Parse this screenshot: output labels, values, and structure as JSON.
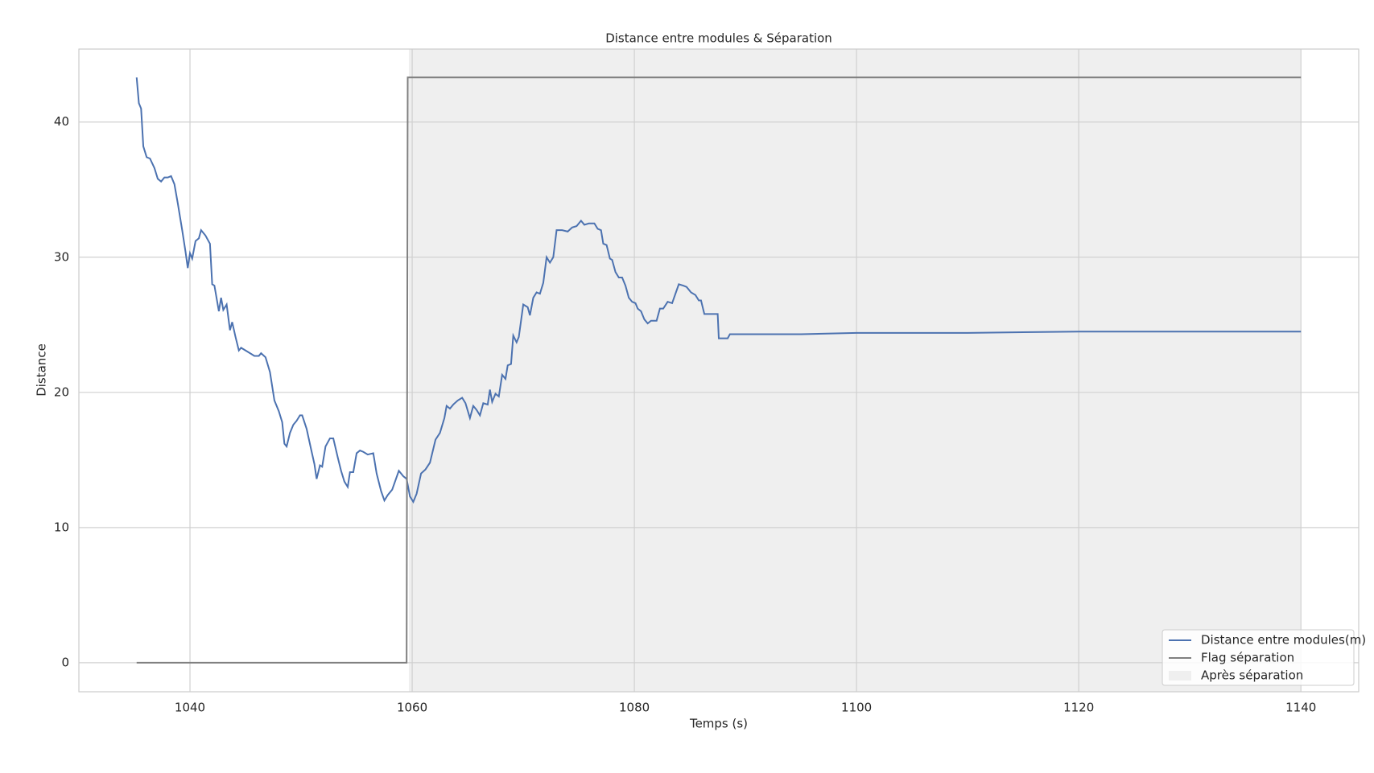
{
  "chart_data": {
    "type": "line",
    "title": "Distance entre modules & Séparation",
    "x_label": "Temps (s)",
    "y_label": "Distance",
    "xlim": [
      1030,
      1145.2
    ],
    "ylim": [
      -2.15,
      45.4
    ],
    "xticks": [
      1040,
      1060,
      1080,
      1100,
      1120,
      1140
    ],
    "yticks": [
      0,
      10,
      20,
      30,
      40
    ],
    "grid": true,
    "legend": "lower right",
    "shaded_region": {
      "name": "Après séparation",
      "x": [
        1059.7,
        1140
      ],
      "color": "#efefef"
    },
    "series": [
      {
        "name": "Distance entre modules(m)",
        "color": "#4c72b0",
        "x": [
          1035.2,
          1035.4,
          1035.6,
          1035.8,
          1036.1,
          1036.4,
          1036.8,
          1037.1,
          1037.4,
          1037.7,
          1038.0,
          1038.3,
          1038.6,
          1038.9,
          1039.3,
          1039.6,
          1039.8,
          1040.0,
          1040.2,
          1040.5,
          1040.8,
          1041.0,
          1041.4,
          1041.8,
          1042.0,
          1042.2,
          1042.6,
          1042.8,
          1043.0,
          1043.3,
          1043.6,
          1043.8,
          1044.1,
          1044.4,
          1044.6,
          1045.2,
          1045.8,
          1046.2,
          1046.4,
          1046.8,
          1047.2,
          1047.6,
          1048.0,
          1048.3,
          1048.5,
          1048.7,
          1049.0,
          1049.3,
          1049.6,
          1049.9,
          1050.1,
          1050.5,
          1050.9,
          1051.2,
          1051.4,
          1051.7,
          1051.9,
          1052.2,
          1052.6,
          1052.9,
          1053.3,
          1053.6,
          1053.9,
          1054.2,
          1054.4,
          1054.7,
          1055.0,
          1055.3,
          1055.6,
          1056.0,
          1056.5,
          1056.8,
          1057.2,
          1057.5,
          1057.8,
          1058.2,
          1058.8,
          1059.2,
          1059.5,
          1059.8,
          1060.1,
          1060.4,
          1060.8,
          1061.2,
          1061.6,
          1062.1,
          1062.5,
          1062.9,
          1063.1,
          1063.4,
          1063.7,
          1064.1,
          1064.5,
          1064.8,
          1065.2,
          1065.5,
          1065.8,
          1066.1,
          1066.4,
          1066.8,
          1067.0,
          1067.2,
          1067.5,
          1067.8,
          1068.1,
          1068.4,
          1068.6,
          1068.9,
          1069.1,
          1069.4,
          1069.6,
          1070.0,
          1070.4,
          1070.6,
          1070.9,
          1071.2,
          1071.5,
          1071.8,
          1072.1,
          1072.4,
          1072.7,
          1073.0,
          1073.5,
          1074.0,
          1074.4,
          1074.8,
          1075.2,
          1075.5,
          1075.9,
          1076.4,
          1076.7,
          1077.0,
          1077.2,
          1077.5,
          1077.8,
          1078.0,
          1078.3,
          1078.6,
          1078.9,
          1079.2,
          1079.5,
          1079.8,
          1080.1,
          1080.3,
          1080.6,
          1080.9,
          1081.2,
          1081.5,
          1082.0,
          1082.3,
          1082.6,
          1083.0,
          1083.4,
          1083.7,
          1084.0,
          1084.4,
          1084.7,
          1085.1,
          1085.5,
          1085.8,
          1086.0,
          1086.3,
          1086.8,
          1087.5,
          1087.6,
          1088.0,
          1088.4,
          1088.6,
          1095,
          1100,
          1110,
          1120,
          1130,
          1140
        ],
        "values": [
          43.3,
          41.4,
          41.0,
          38.2,
          37.4,
          37.3,
          36.6,
          35.8,
          35.6,
          35.9,
          35.9,
          36.0,
          35.4,
          34.0,
          32.0,
          30.4,
          29.2,
          30.3,
          29.9,
          31.2,
          31.4,
          32.0,
          31.6,
          31.0,
          28.0,
          27.9,
          26.0,
          27.0,
          26.1,
          26.5,
          24.6,
          25.2,
          24.1,
          23.1,
          23.3,
          23.0,
          22.7,
          22.7,
          22.9,
          22.6,
          21.5,
          19.4,
          18.6,
          17.8,
          16.2,
          16.0,
          17.0,
          17.6,
          17.9,
          18.3,
          18.3,
          17.3,
          15.8,
          14.7,
          13.6,
          14.6,
          14.5,
          16.0,
          16.6,
          16.6,
          15.2,
          14.2,
          13.4,
          13.0,
          14.1,
          14.1,
          15.5,
          15.7,
          15.6,
          15.4,
          15.5,
          14.0,
          12.7,
          12.0,
          12.4,
          12.8,
          14.2,
          13.8,
          13.6,
          12.3,
          11.9,
          12.5,
          14.0,
          14.3,
          14.8,
          16.5,
          17.0,
          18.1,
          19.0,
          18.8,
          19.1,
          19.4,
          19.6,
          19.2,
          18.1,
          19.0,
          18.7,
          18.3,
          19.2,
          19.1,
          20.2,
          19.3,
          19.9,
          19.7,
          21.3,
          21.0,
          22.0,
          22.1,
          24.2,
          23.7,
          24.1,
          26.5,
          26.3,
          25.7,
          27.0,
          27.4,
          27.3,
          28.1,
          30.0,
          29.6,
          30.0,
          32.0,
          32.0,
          31.9,
          32.2,
          32.3,
          32.7,
          32.4,
          32.5,
          32.5,
          32.1,
          32.0,
          31.0,
          30.9,
          29.9,
          29.8,
          28.9,
          28.5,
          28.5,
          27.9,
          27.0,
          26.7,
          26.6,
          26.2,
          26.0,
          25.4,
          25.1,
          25.3,
          25.3,
          26.2,
          26.2,
          26.7,
          26.6,
          27.3,
          28.0,
          27.9,
          27.8,
          27.4,
          27.2,
          26.8,
          26.8,
          25.8,
          25.8,
          25.8,
          24.0,
          24.0,
          24.0,
          24.3,
          24.3,
          24.4,
          24.4,
          24.5,
          24.5,
          24.5
        ]
      },
      {
        "name": "Flag séparation",
        "color": "#7f7f7f",
        "x": [
          1035.2,
          1059.5,
          1059.6,
          1140
        ],
        "values": [
          0,
          0,
          43.3,
          43.3
        ]
      }
    ]
  }
}
